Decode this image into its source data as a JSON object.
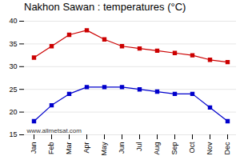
{
  "chart_data": {
    "type": "line",
    "title": "Nakhon Sawan : temperatures (°C)",
    "categories": [
      "Jan",
      "Feb",
      "Mar",
      "Apr",
      "May",
      "Jun",
      "Jul",
      "Aug",
      "Sep",
      "Oct",
      "Nov",
      "Dec"
    ],
    "series": [
      {
        "color": "#cc0000",
        "marker": "square",
        "values": [
          32,
          34.5,
          37,
          38,
          36,
          34.5,
          34,
          33.5,
          33,
          32.5,
          31.5,
          31
        ]
      },
      {
        "color": "#0000cc",
        "marker": "square",
        "values": [
          18,
          21.5,
          24,
          25.5,
          25.5,
          25.5,
          25,
          24.5,
          24,
          24,
          21,
          18
        ]
      }
    ],
    "ylim": [
      15,
      40
    ],
    "yticks": [
      15,
      20,
      25,
      30,
      35,
      40
    ],
    "grid": true,
    "annotations": [
      "www.allmetsat.com"
    ]
  }
}
